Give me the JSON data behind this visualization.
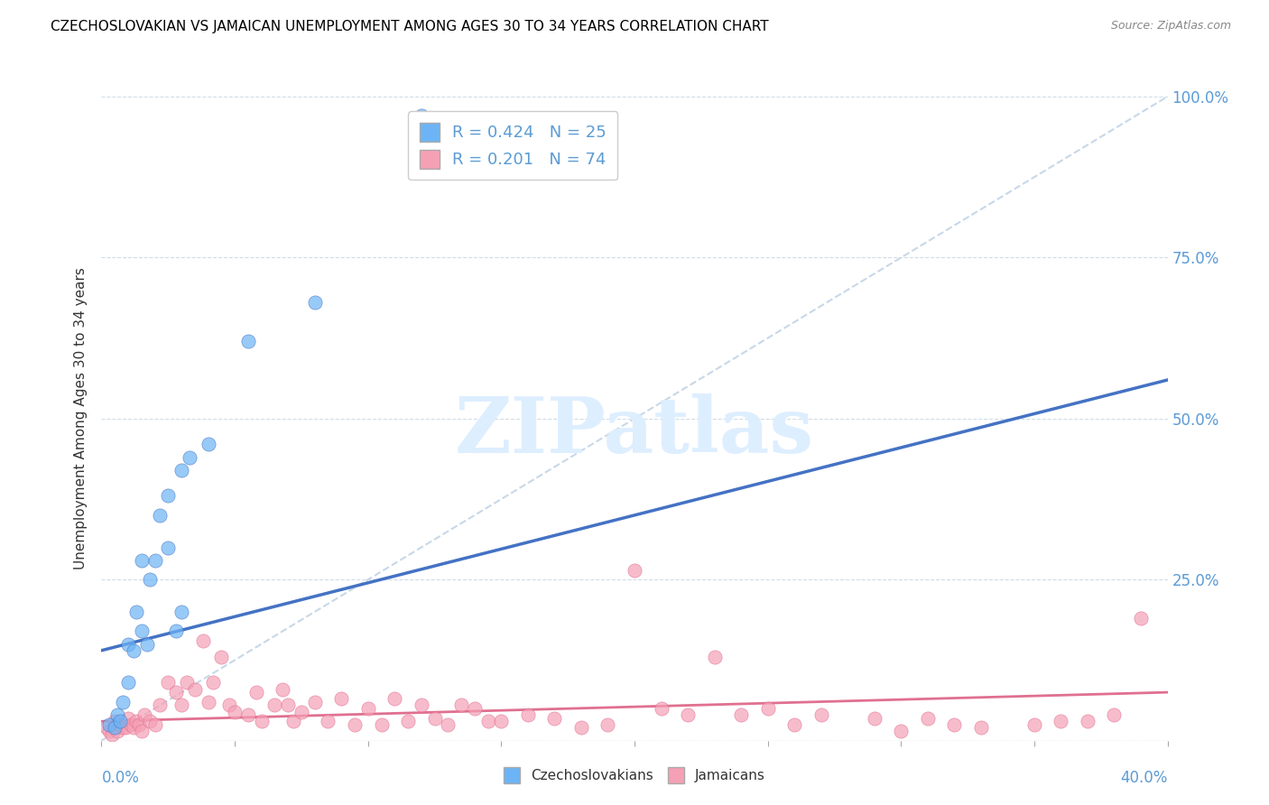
{
  "title": "CZECHOSLOVAKIAN VS JAMAICAN UNEMPLOYMENT AMONG AGES 30 TO 34 YEARS CORRELATION CHART",
  "source": "Source: ZipAtlas.com",
  "ylabel": "Unemployment Among Ages 30 to 34 years",
  "xmin": 0.0,
  "xmax": 0.4,
  "ymin": 0.0,
  "ymax": 1.0,
  "yticks": [
    0.0,
    0.25,
    0.5,
    0.75,
    1.0
  ],
  "ytick_labels_right": [
    "",
    "25.0%",
    "50.0%",
    "75.0%",
    "100.0%"
  ],
  "czech_color": "#6cb4f5",
  "jamaican_color": "#f5a0b5",
  "czech_line_color": "#4472c4",
  "jamaican_line_color": "#e07090",
  "diag_color": "#c8d8e8",
  "watermark_text": "ZIPatlas",
  "watermark_color": "#ddeeff",
  "legend_r1_text": "R = 0.424   N = 25",
  "legend_r2_text": "R = 0.201   N = 74",
  "bottom_legend_1": "Czechoslovakians",
  "bottom_legend_2": "Jamaicans",
  "czech_scatter_x": [
    0.003,
    0.005,
    0.006,
    0.007,
    0.008,
    0.01,
    0.01,
    0.012,
    0.013,
    0.015,
    0.015,
    0.017,
    0.018,
    0.02,
    0.022,
    0.025,
    0.025,
    0.028,
    0.03,
    0.03,
    0.033,
    0.04,
    0.055,
    0.08,
    0.12
  ],
  "czech_scatter_y": [
    0.025,
    0.02,
    0.04,
    0.03,
    0.06,
    0.09,
    0.15,
    0.14,
    0.2,
    0.17,
    0.28,
    0.15,
    0.25,
    0.28,
    0.35,
    0.3,
    0.38,
    0.17,
    0.2,
    0.42,
    0.44,
    0.46,
    0.62,
    0.68,
    0.97
  ],
  "jamaican_scatter_x": [
    0.002,
    0.003,
    0.004,
    0.005,
    0.006,
    0.007,
    0.008,
    0.009,
    0.01,
    0.011,
    0.012,
    0.013,
    0.014,
    0.015,
    0.016,
    0.018,
    0.02,
    0.022,
    0.025,
    0.028,
    0.03,
    0.032,
    0.035,
    0.038,
    0.04,
    0.042,
    0.045,
    0.048,
    0.05,
    0.055,
    0.058,
    0.06,
    0.065,
    0.068,
    0.07,
    0.072,
    0.075,
    0.08,
    0.085,
    0.09,
    0.095,
    0.1,
    0.105,
    0.11,
    0.115,
    0.12,
    0.125,
    0.13,
    0.135,
    0.14,
    0.145,
    0.15,
    0.16,
    0.17,
    0.18,
    0.19,
    0.2,
    0.21,
    0.22,
    0.23,
    0.24,
    0.25,
    0.26,
    0.27,
    0.29,
    0.3,
    0.31,
    0.32,
    0.33,
    0.35,
    0.36,
    0.37,
    0.38,
    0.39
  ],
  "jamaican_scatter_y": [
    0.02,
    0.015,
    0.01,
    0.03,
    0.015,
    0.025,
    0.02,
    0.02,
    0.035,
    0.025,
    0.02,
    0.03,
    0.025,
    0.015,
    0.04,
    0.03,
    0.025,
    0.055,
    0.09,
    0.075,
    0.055,
    0.09,
    0.08,
    0.155,
    0.06,
    0.09,
    0.13,
    0.055,
    0.045,
    0.04,
    0.075,
    0.03,
    0.055,
    0.08,
    0.055,
    0.03,
    0.045,
    0.06,
    0.03,
    0.065,
    0.025,
    0.05,
    0.025,
    0.065,
    0.03,
    0.055,
    0.035,
    0.025,
    0.055,
    0.05,
    0.03,
    0.03,
    0.04,
    0.035,
    0.02,
    0.025,
    0.265,
    0.05,
    0.04,
    0.13,
    0.04,
    0.05,
    0.025,
    0.04,
    0.035,
    0.015,
    0.035,
    0.025,
    0.02,
    0.025,
    0.03,
    0.03,
    0.04,
    0.19
  ],
  "czech_line_x0": 0.0,
  "czech_line_x1": 0.4,
  "czech_line_y0": 0.14,
  "czech_line_y1": 0.56,
  "jamaican_line_x0": 0.0,
  "jamaican_line_x1": 0.4,
  "jamaican_line_y0": 0.03,
  "jamaican_line_y1": 0.075
}
